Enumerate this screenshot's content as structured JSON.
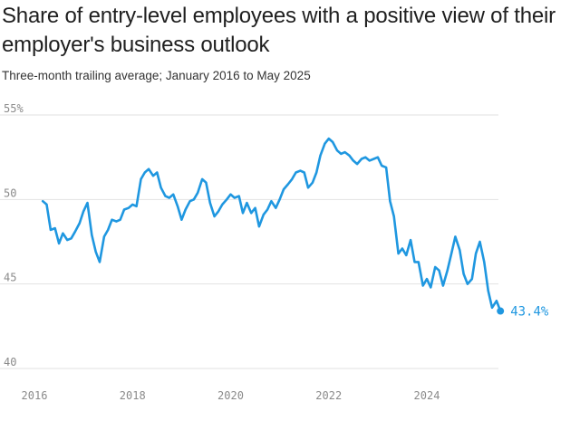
{
  "header": {
    "title": "Share of entry-level employees with a positive view of their employer's business outlook",
    "subtitle": "Three-month trailing average; January 2016 to May 2025"
  },
  "colors": {
    "line": "#1f97e0",
    "grid": "#e2e2e2",
    "tick": "#8a8a8a"
  },
  "chart_data": {
    "type": "line",
    "title": "Share of entry-level employees with a positive view of their employer's business outlook",
    "subtitle": "Three-month trailing average; January 2016 to May 2025",
    "xlabel": "",
    "ylabel": "",
    "x_range": [
      2015.75,
      2026.0
    ],
    "ylim": [
      40,
      55
    ],
    "y_ticks": [
      {
        "value": 55,
        "label": "55%"
      },
      {
        "value": 50,
        "label": "50"
      },
      {
        "value": 45,
        "label": "45"
      },
      {
        "value": 40,
        "label": "40"
      }
    ],
    "x_ticks": [
      {
        "value": 2016,
        "label": "2016"
      },
      {
        "value": 2018,
        "label": "2018"
      },
      {
        "value": 2020,
        "label": "2020"
      },
      {
        "value": 2022,
        "label": "2022"
      },
      {
        "value": 2024,
        "label": "2024"
      }
    ],
    "grid": "horizontal",
    "end_label": "43.4%",
    "series": [
      {
        "color": "#1f97e0",
        "points": [
          [
            2016.17,
            49.9
          ],
          [
            2016.25,
            49.7
          ],
          [
            2016.33,
            48.2
          ],
          [
            2016.42,
            48.3
          ],
          [
            2016.5,
            47.4
          ],
          [
            2016.58,
            48.0
          ],
          [
            2016.67,
            47.6
          ],
          [
            2016.75,
            47.7
          ],
          [
            2016.83,
            48.1
          ],
          [
            2016.92,
            48.6
          ],
          [
            2017.0,
            49.3
          ],
          [
            2017.08,
            49.8
          ],
          [
            2017.17,
            47.9
          ],
          [
            2017.25,
            46.9
          ],
          [
            2017.33,
            46.3
          ],
          [
            2017.42,
            47.8
          ],
          [
            2017.5,
            48.2
          ],
          [
            2017.58,
            48.8
          ],
          [
            2017.67,
            48.7
          ],
          [
            2017.75,
            48.8
          ],
          [
            2017.83,
            49.4
          ],
          [
            2017.92,
            49.5
          ],
          [
            2018.0,
            49.7
          ],
          [
            2018.08,
            49.6
          ],
          [
            2018.17,
            51.2
          ],
          [
            2018.25,
            51.6
          ],
          [
            2018.33,
            51.8
          ],
          [
            2018.42,
            51.4
          ],
          [
            2018.5,
            51.6
          ],
          [
            2018.58,
            50.7
          ],
          [
            2018.67,
            50.2
          ],
          [
            2018.75,
            50.1
          ],
          [
            2018.83,
            50.3
          ],
          [
            2018.92,
            49.6
          ],
          [
            2019.0,
            48.8
          ],
          [
            2019.08,
            49.4
          ],
          [
            2019.17,
            49.9
          ],
          [
            2019.25,
            50.0
          ],
          [
            2019.33,
            50.4
          ],
          [
            2019.42,
            51.2
          ],
          [
            2019.5,
            51.0
          ],
          [
            2019.58,
            49.8
          ],
          [
            2019.67,
            49.0
          ],
          [
            2019.75,
            49.3
          ],
          [
            2019.83,
            49.7
          ],
          [
            2019.92,
            50.0
          ],
          [
            2020.0,
            50.3
          ],
          [
            2020.08,
            50.1
          ],
          [
            2020.17,
            50.2
          ],
          [
            2020.25,
            49.2
          ],
          [
            2020.33,
            49.8
          ],
          [
            2020.42,
            49.2
          ],
          [
            2020.5,
            49.5
          ],
          [
            2020.58,
            48.4
          ],
          [
            2020.67,
            49.1
          ],
          [
            2020.75,
            49.4
          ],
          [
            2020.83,
            49.9
          ],
          [
            2020.92,
            49.5
          ],
          [
            2021.0,
            50.0
          ],
          [
            2021.08,
            50.6
          ],
          [
            2021.17,
            50.9
          ],
          [
            2021.25,
            51.2
          ],
          [
            2021.33,
            51.6
          ],
          [
            2021.42,
            51.7
          ],
          [
            2021.5,
            51.6
          ],
          [
            2021.58,
            50.7
          ],
          [
            2021.67,
            51.0
          ],
          [
            2021.75,
            51.6
          ],
          [
            2021.83,
            52.6
          ],
          [
            2021.92,
            53.3
          ],
          [
            2022.0,
            53.6
          ],
          [
            2022.08,
            53.4
          ],
          [
            2022.17,
            52.9
          ],
          [
            2022.25,
            52.7
          ],
          [
            2022.33,
            52.8
          ],
          [
            2022.42,
            52.6
          ],
          [
            2022.5,
            52.3
          ],
          [
            2022.58,
            52.1
          ],
          [
            2022.67,
            52.4
          ],
          [
            2022.75,
            52.5
          ],
          [
            2022.83,
            52.3
          ],
          [
            2022.92,
            52.4
          ],
          [
            2023.0,
            52.5
          ],
          [
            2023.08,
            52.0
          ],
          [
            2023.17,
            51.9
          ],
          [
            2023.25,
            49.9
          ],
          [
            2023.33,
            49.0
          ],
          [
            2023.42,
            46.8
          ],
          [
            2023.5,
            47.1
          ],
          [
            2023.58,
            46.7
          ],
          [
            2023.67,
            47.6
          ],
          [
            2023.75,
            46.3
          ],
          [
            2023.83,
            46.3
          ],
          [
            2023.92,
            44.9
          ],
          [
            2024.0,
            45.3
          ],
          [
            2024.08,
            44.8
          ],
          [
            2024.17,
            46.0
          ],
          [
            2024.25,
            45.8
          ],
          [
            2024.33,
            44.9
          ],
          [
            2024.42,
            45.8
          ],
          [
            2024.5,
            46.8
          ],
          [
            2024.58,
            47.8
          ],
          [
            2024.67,
            47.0
          ],
          [
            2024.75,
            45.6
          ],
          [
            2024.83,
            45.0
          ],
          [
            2024.92,
            45.3
          ],
          [
            2025.0,
            46.8
          ],
          [
            2025.08,
            47.5
          ],
          [
            2025.17,
            46.3
          ],
          [
            2025.25,
            44.6
          ],
          [
            2025.33,
            43.6
          ],
          [
            2025.42,
            44.0
          ],
          [
            2025.5,
            43.4
          ]
        ]
      }
    ]
  }
}
